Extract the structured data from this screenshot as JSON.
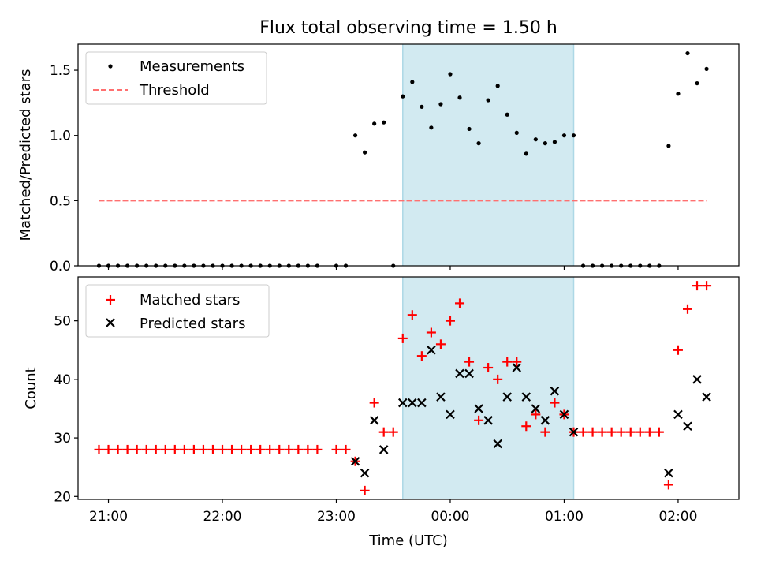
{
  "figure": {
    "title": "Flux total observing time = 1.50 h"
  },
  "colors": {
    "shade": "#add8e6",
    "measurements": "#000000",
    "threshold": "#ff7070",
    "matched": "#ff0000",
    "predicted": "#000000"
  },
  "chart_data": [
    {
      "type": "scatter",
      "panel": "top",
      "ylabel": "Matched/Predicted stars",
      "xlim": [
        "20:44",
        "02:32"
      ],
      "ylim": [
        0,
        1.7
      ],
      "yticks": [
        0.0,
        0.5,
        1.0,
        1.5
      ],
      "ytick_labels": [
        "0.0",
        "0.5",
        "1.0",
        "1.5"
      ],
      "shaded_span": [
        "23:35",
        "01:05"
      ],
      "legend": {
        "placement": "top-left",
        "entries": [
          "Measurements",
          "Threshold"
        ]
      },
      "threshold": {
        "name": "Threshold",
        "y": 0.5,
        "x_range": [
          "20:55",
          "02:15"
        ]
      },
      "series": [
        {
          "name": "Measurements",
          "x": [
            "20:55",
            "21:00",
            "21:05",
            "21:10",
            "21:15",
            "21:20",
            "21:25",
            "21:30",
            "21:35",
            "21:40",
            "21:45",
            "21:50",
            "21:55",
            "22:00",
            "22:05",
            "22:10",
            "22:15",
            "22:20",
            "22:25",
            "22:30",
            "22:35",
            "22:40",
            "22:45",
            "22:50",
            "23:00",
            "23:05",
            "23:10",
            "23:15",
            "23:20",
            "23:25",
            "23:30",
            "23:35",
            "23:40",
            "23:45",
            "23:50",
            "23:55",
            "00:00",
            "00:05",
            "00:10",
            "00:15",
            "00:20",
            "00:25",
            "00:30",
            "00:35",
            "00:40",
            "00:45",
            "00:50",
            "00:55",
            "01:00",
            "01:05",
            "01:10",
            "01:15",
            "01:20",
            "01:25",
            "01:30",
            "01:35",
            "01:40",
            "01:45",
            "01:50",
            "01:55",
            "02:00",
            "02:05",
            "02:10",
            "02:15"
          ],
          "y": [
            0,
            0,
            0,
            0,
            0,
            0,
            0,
            0,
            0,
            0,
            0,
            0,
            0,
            0,
            0,
            0,
            0,
            0,
            0,
            0,
            0,
            0,
            0,
            0,
            0,
            0,
            1.0,
            0.87,
            1.09,
            1.1,
            0,
            1.3,
            1.41,
            1.22,
            1.06,
            1.24,
            1.47,
            1.29,
            1.05,
            0.94,
            1.27,
            1.38,
            1.16,
            1.02,
            0.86,
            0.97,
            0.94,
            0.95,
            1.0,
            1.0,
            0,
            0,
            0,
            0,
            0,
            0,
            0,
            0,
            0,
            0.92,
            1.32,
            1.63,
            1.4,
            1.51
          ]
        }
      ]
    },
    {
      "type": "scatter",
      "panel": "bottom",
      "xlabel": "Time (UTC)",
      "ylabel": "Count",
      "xlim": [
        "20:44",
        "02:32"
      ],
      "ylim": [
        19.5,
        57.5
      ],
      "yticks": [
        20,
        30,
        40,
        50
      ],
      "ytick_labels": [
        "20",
        "30",
        "40",
        "50"
      ],
      "xticks": [
        "21:00",
        "22:00",
        "23:00",
        "00:00",
        "01:00",
        "02:00"
      ],
      "shaded_span": [
        "23:35",
        "01:05"
      ],
      "legend": {
        "placement": "top-left",
        "entries": [
          "Matched stars",
          "Predicted stars"
        ]
      },
      "series": [
        {
          "name": "Matched stars",
          "x": [
            "20:55",
            "21:00",
            "21:05",
            "21:10",
            "21:15",
            "21:20",
            "21:25",
            "21:30",
            "21:35",
            "21:40",
            "21:45",
            "21:50",
            "21:55",
            "22:00",
            "22:05",
            "22:10",
            "22:15",
            "22:20",
            "22:25",
            "22:30",
            "22:35",
            "22:40",
            "22:45",
            "22:50",
            "23:00",
            "23:05",
            "23:10",
            "23:15",
            "23:20",
            "23:25",
            "23:30",
            "23:35",
            "23:40",
            "23:45",
            "23:50",
            "23:55",
            "00:00",
            "00:05",
            "00:10",
            "00:15",
            "00:20",
            "00:25",
            "00:30",
            "00:35",
            "00:40",
            "00:45",
            "00:50",
            "00:55",
            "01:00",
            "01:05",
            "01:10",
            "01:15",
            "01:20",
            "01:25",
            "01:30",
            "01:35",
            "01:40",
            "01:45",
            "01:50",
            "01:55",
            "02:00",
            "02:05",
            "02:10",
            "02:15"
          ],
          "y": [
            28,
            28,
            28,
            28,
            28,
            28,
            28,
            28,
            28,
            28,
            28,
            28,
            28,
            28,
            28,
            28,
            28,
            28,
            28,
            28,
            28,
            28,
            28,
            28,
            28,
            28,
            26,
            21,
            36,
            31,
            31,
            47,
            51,
            44,
            48,
            46,
            50,
            53,
            43,
            33,
            42,
            40,
            43,
            43,
            32,
            34,
            31,
            36,
            34,
            31,
            31,
            31,
            31,
            31,
            31,
            31,
            31,
            31,
            31,
            22,
            45,
            52,
            56,
            56
          ]
        },
        {
          "name": "Predicted stars",
          "x": [
            "23:10",
            "23:15",
            "23:20",
            "23:25",
            "23:35",
            "23:40",
            "23:45",
            "23:50",
            "23:55",
            "00:00",
            "00:05",
            "00:10",
            "00:15",
            "00:20",
            "00:25",
            "00:30",
            "00:35",
            "00:40",
            "00:45",
            "00:50",
            "00:55",
            "01:00",
            "01:05",
            "01:55",
            "02:00",
            "02:05",
            "02:10",
            "02:15"
          ],
          "y": [
            26,
            24,
            33,
            28,
            36,
            36,
            36,
            45,
            37,
            34,
            41,
            41,
            35,
            33,
            29,
            37,
            42,
            37,
            35,
            33,
            38,
            34,
            31,
            24,
            34,
            32,
            40,
            37
          ]
        }
      ]
    }
  ]
}
